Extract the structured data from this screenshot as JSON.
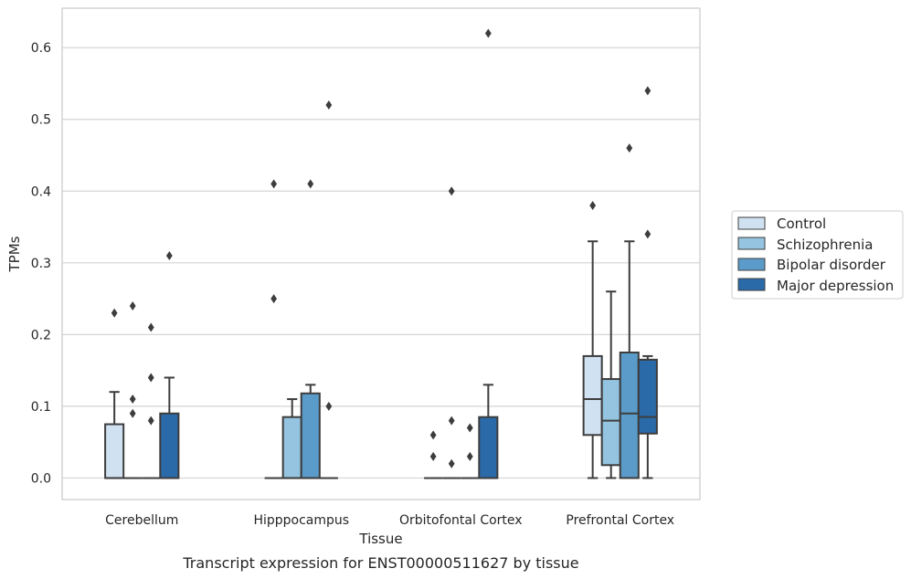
{
  "caption": "Transcript expression for ENST00000511627 by tissue",
  "chart_data": {
    "type": "box",
    "xlabel": "Tissue",
    "ylabel": "TPMs",
    "ylim": [
      -0.03,
      0.655
    ],
    "yticks": [
      0.0,
      0.1,
      0.2,
      0.3,
      0.4,
      0.5,
      0.6
    ],
    "ytick_labels": [
      "0.0",
      "0.1",
      "0.2",
      "0.3",
      "0.4",
      "0.5",
      "0.6"
    ],
    "grid": "horizontal",
    "legend_placement": "right",
    "categories": [
      "Cerebellum",
      "Hipppocampus",
      "Orbitofontal Cortex",
      "Prefrontal Cortex"
    ],
    "series": [
      {
        "name": "Control",
        "color": "#d0e1f2",
        "boxes": [
          {
            "q1": 0.0,
            "median": 0.0,
            "q3": 0.075,
            "whisker_low": 0.0,
            "whisker_high": 0.12,
            "outliers": [
              0.23
            ]
          },
          {
            "q1": 0.0,
            "median": 0.0,
            "q3": 0.0,
            "whisker_low": 0.0,
            "whisker_high": 0.0,
            "outliers": [
              0.41,
              0.25
            ]
          },
          {
            "q1": 0.0,
            "median": 0.0,
            "q3": 0.0,
            "whisker_low": 0.0,
            "whisker_high": 0.0,
            "outliers": [
              0.06,
              0.03
            ]
          },
          {
            "q1": 0.06,
            "median": 0.11,
            "q3": 0.17,
            "whisker_low": 0.0,
            "whisker_high": 0.33,
            "outliers": [
              0.38
            ]
          }
        ]
      },
      {
        "name": "Schizophrenia",
        "color": "#94c4df",
        "boxes": [
          {
            "q1": 0.0,
            "median": 0.0,
            "q3": 0.0,
            "whisker_low": 0.0,
            "whisker_high": 0.0,
            "outliers": [
              0.24,
              0.11,
              0.09
            ]
          },
          {
            "q1": 0.0,
            "median": 0.0,
            "q3": 0.085,
            "whisker_low": 0.0,
            "whisker_high": 0.11,
            "outliers": []
          },
          {
            "q1": 0.0,
            "median": 0.0,
            "q3": 0.0,
            "whisker_low": 0.0,
            "whisker_high": 0.0,
            "outliers": [
              0.4,
              0.08,
              0.02
            ]
          },
          {
            "q1": 0.018,
            "median": 0.08,
            "q3": 0.138,
            "whisker_low": 0.0,
            "whisker_high": 0.26,
            "outliers": []
          }
        ]
      },
      {
        "name": "Bipolar disorder",
        "color": "#5a9bc9",
        "boxes": [
          {
            "q1": 0.0,
            "median": 0.0,
            "q3": 0.0,
            "whisker_low": 0.0,
            "whisker_high": 0.0,
            "outliers": [
              0.21,
              0.14,
              0.08
            ]
          },
          {
            "q1": 0.0,
            "median": 0.0,
            "q3": 0.118,
            "whisker_low": 0.0,
            "whisker_high": 0.13,
            "outliers": [
              0.41
            ]
          },
          {
            "q1": 0.0,
            "median": 0.0,
            "q3": 0.0,
            "whisker_low": 0.0,
            "whisker_high": 0.0,
            "outliers": [
              0.07,
              0.03
            ]
          },
          {
            "q1": 0.0,
            "median": 0.09,
            "q3": 0.175,
            "whisker_low": 0.0,
            "whisker_high": 0.33,
            "outliers": [
              0.46
            ]
          }
        ]
      },
      {
        "name": "Major depression",
        "color": "#2a6aa8",
        "boxes": [
          {
            "q1": 0.0,
            "median": 0.0,
            "q3": 0.09,
            "whisker_low": 0.0,
            "whisker_high": 0.14,
            "outliers": [
              0.31
            ]
          },
          {
            "q1": 0.0,
            "median": 0.0,
            "q3": 0.0,
            "whisker_low": 0.0,
            "whisker_high": 0.0,
            "outliers": [
              0.52,
              0.1
            ]
          },
          {
            "q1": 0.0,
            "median": 0.0,
            "q3": 0.085,
            "whisker_low": 0.0,
            "whisker_high": 0.13,
            "outliers": [
              0.62
            ]
          },
          {
            "q1": 0.062,
            "median": 0.085,
            "q3": 0.165,
            "whisker_low": 0.0,
            "whisker_high": 0.17,
            "outliers": [
              0.54,
              0.34
            ]
          }
        ]
      }
    ]
  }
}
